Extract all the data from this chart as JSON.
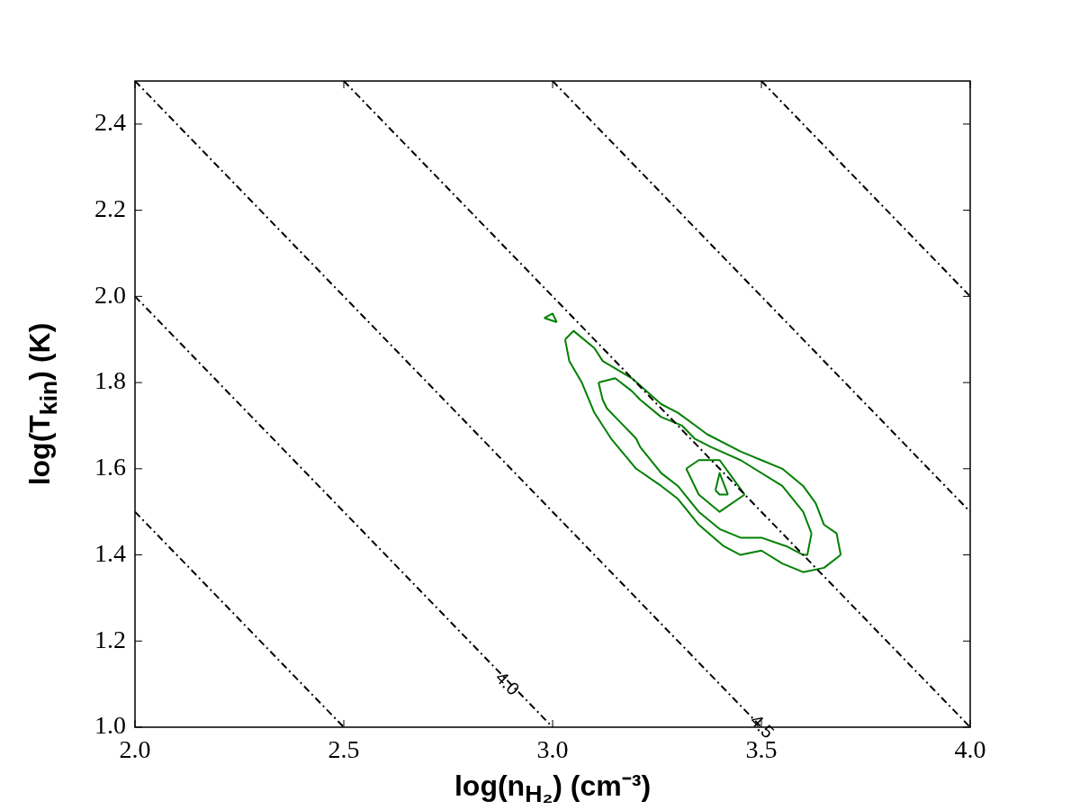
{
  "chart_data": {
    "type": "line",
    "xlabel": "log(n$_{H₂}$) (cm⁻³)",
    "ylabel": "log(T$_{kin}$) (K)",
    "xlim": [
      2.0,
      4.0
    ],
    "ylim": [
      1.0,
      2.5
    ],
    "xticks": [
      {
        "value": 2,
        "label": "2.0"
      },
      {
        "value": 2.5,
        "label": "2.5"
      },
      {
        "value": 3,
        "label": "3.0"
      },
      {
        "value": 3.5,
        "label": "3.5"
      },
      {
        "value": 4,
        "label": "4.0"
      }
    ],
    "yticks": [
      {
        "value": 1,
        "label": "1.0"
      },
      {
        "value": 1.2,
        "label": "1.2"
      },
      {
        "value": 1.4,
        "label": "1.4"
      },
      {
        "value": 1.6,
        "label": "1.6"
      },
      {
        "value": 1.8,
        "label": "1.8"
      },
      {
        "value": 2,
        "label": "2.0"
      },
      {
        "value": 2.2,
        "label": "2.2"
      },
      {
        "value": 2.4,
        "label": "2.4"
      }
    ],
    "grid": false,
    "legend": false,
    "marker": "none",
    "series": [
      {
        "color": "#000000",
        "line_style": "dashed",
        "x": [
          2.0,
          2.5
        ],
        "values": [
          1.5,
          1.0
        ]
      },
      {
        "color": "#000000",
        "line_style": "dashed",
        "x": [
          2.0,
          3.0
        ],
        "values": [
          2.0,
          1.0
        ]
      },
      {
        "color": "#000000",
        "line_style": "dashed",
        "x": [
          2.0,
          3.5
        ],
        "values": [
          2.5,
          1.0
        ]
      },
      {
        "color": "#000000",
        "line_style": "dashed",
        "x": [
          2.5,
          4.0
        ],
        "values": [
          2.5,
          1.0
        ]
      },
      {
        "color": "#000000",
        "line_style": "dashed",
        "x": [
          3.0,
          4.0
        ],
        "values": [
          2.5,
          1.5
        ]
      },
      {
        "color": "#000000",
        "line_style": "dashed",
        "x": [
          3.5,
          4.0
        ],
        "values": [
          2.5,
          2.0
        ]
      },
      {
        "color": "#008000",
        "line_style": "solid",
        "x": [
          3.03,
          3.05,
          3.1,
          3.12,
          3.19,
          3.26,
          3.3,
          3.37,
          3.45,
          3.5,
          3.55,
          3.6,
          3.63,
          3.65,
          3.68,
          3.69
        ],
        "values": [
          1.9,
          1.92,
          1.88,
          1.85,
          1.81,
          1.75,
          1.73,
          1.68,
          1.64,
          1.62,
          1.6,
          1.56,
          1.52,
          1.47,
          1.45,
          1.4
        ]
      },
      {
        "color": "#008000",
        "line_style": "solid",
        "x": [
          3.03,
          3.04,
          3.07,
          3.1,
          3.14,
          3.2,
          3.26,
          3.3,
          3.35,
          3.41,
          3.45,
          3.5,
          3.55,
          3.6,
          3.65,
          3.69
        ],
        "values": [
          1.9,
          1.85,
          1.8,
          1.73,
          1.67,
          1.6,
          1.56,
          1.53,
          1.47,
          1.42,
          1.4,
          1.41,
          1.38,
          1.36,
          1.37,
          1.4
        ]
      },
      {
        "color": "#008000",
        "line_style": "solid",
        "x": [
          3.11,
          3.15,
          3.19,
          3.21,
          3.26,
          3.31,
          3.34,
          3.38,
          3.45,
          3.55,
          3.6,
          3.62
        ],
        "values": [
          1.8,
          1.81,
          1.78,
          1.76,
          1.72,
          1.7,
          1.67,
          1.65,
          1.62,
          1.56,
          1.5,
          1.45
        ]
      },
      {
        "color": "#008000",
        "line_style": "solid",
        "x": [
          3.11,
          3.12,
          3.13,
          3.16,
          3.2,
          3.21,
          3.26,
          3.3,
          3.35,
          3.4,
          3.45,
          3.5,
          3.56,
          3.6,
          3.61,
          3.62
        ],
        "values": [
          1.8,
          1.76,
          1.74,
          1.71,
          1.67,
          1.65,
          1.59,
          1.56,
          1.5,
          1.46,
          1.44,
          1.44,
          1.42,
          1.4,
          1.4,
          1.45
        ]
      },
      {
        "color": "#008000",
        "line_style": "solid",
        "x": [
          3.32,
          3.35,
          3.4,
          3.43,
          3.46
        ],
        "values": [
          1.6,
          1.62,
          1.62,
          1.58,
          1.54
        ]
      },
      {
        "color": "#008000",
        "line_style": "solid",
        "x": [
          3.32,
          3.35,
          3.4,
          3.46
        ],
        "values": [
          1.6,
          1.54,
          1.5,
          1.54
        ]
      },
      {
        "color": "#008000",
        "line_style": "solid",
        "x": [
          3.39,
          3.4,
          3.42
        ],
        "values": [
          1.55,
          1.59,
          1.54
        ]
      },
      {
        "color": "#008000",
        "line_style": "solid",
        "x": [
          3.39,
          3.4,
          3.42
        ],
        "values": [
          1.55,
          1.54,
          1.54
        ]
      },
      {
        "color": "#008000",
        "line_style": "solid",
        "x": [
          2.98,
          3.0,
          3.01
        ],
        "values": [
          1.95,
          1.96,
          1.94
        ]
      },
      {
        "color": "#008000",
        "line_style": "solid",
        "x": [
          2.98,
          3.01
        ],
        "values": [
          1.95,
          1.94
        ]
      }
    ],
    "annotations": [
      {
        "text": "4.0",
        "x": 2.89,
        "y": 1.1
      },
      {
        "text": "4.5",
        "x": 3.5,
        "y": 1.0
      }
    ]
  }
}
